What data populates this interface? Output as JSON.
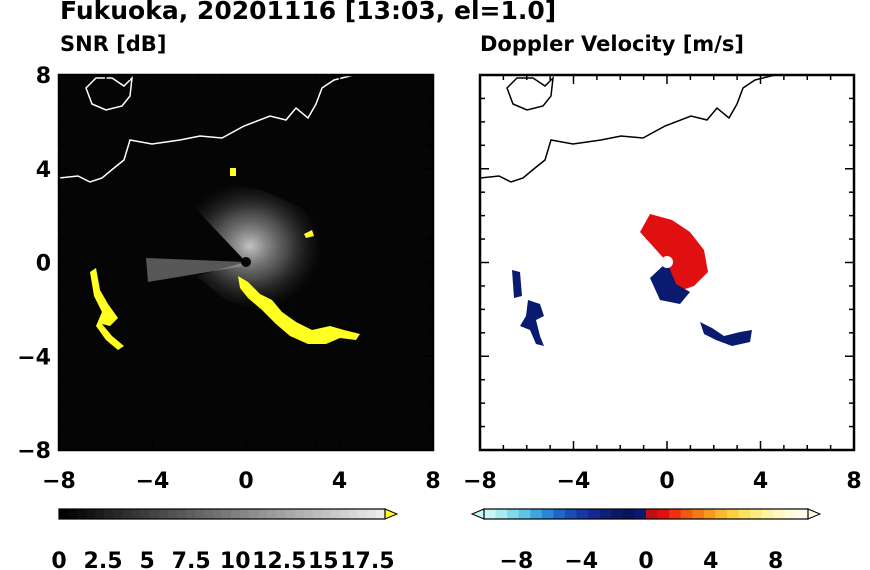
{
  "figure": {
    "title": "Fukuoka, 20201116 [13:03, el=1.0]"
  },
  "chart_data": [
    {
      "type": "heatmap",
      "title": "SNR [dB]",
      "xlim": [
        -8,
        8
      ],
      "ylim": [
        -8,
        8
      ],
      "x_ticks": [
        "−8",
        "−4",
        "0",
        "4",
        "8"
      ],
      "y_ticks": [
        "8",
        "4",
        "0",
        "−4",
        "−8"
      ],
      "grid": false,
      "background_color": "#050505",
      "colorbar": {
        "min": 0,
        "max": 18.5,
        "extend": "max",
        "palette": "gray-to-white, yellow extension",
        "tick_labels": [
          "0",
          "2.5",
          "5",
          "7.5",
          "10",
          "12.5",
          "15",
          "17.5"
        ]
      }
    },
    {
      "type": "heatmap",
      "title": "Doppler Velocity [m/s]",
      "xlim": [
        -8,
        8
      ],
      "ylim": [
        -8,
        8
      ],
      "x_ticks": [
        "−8",
        "−4",
        "0",
        "4",
        "8"
      ],
      "grid": false,
      "background_color": "#ffffff",
      "colorbar": {
        "min": -10,
        "max": 10,
        "extend": "both",
        "palette": "cyan-blue-navy negative, red-orange-yellow positive",
        "tick_labels": [
          "−8",
          "−4",
          "0",
          "4",
          "8"
        ]
      }
    }
  ],
  "colors": {
    "coastline": "#ffffff",
    "coastline_right": "#000000",
    "snr_strong": "#ffff22",
    "velocity_negative": "#0a1a6e",
    "velocity_positive": "#e01010"
  }
}
